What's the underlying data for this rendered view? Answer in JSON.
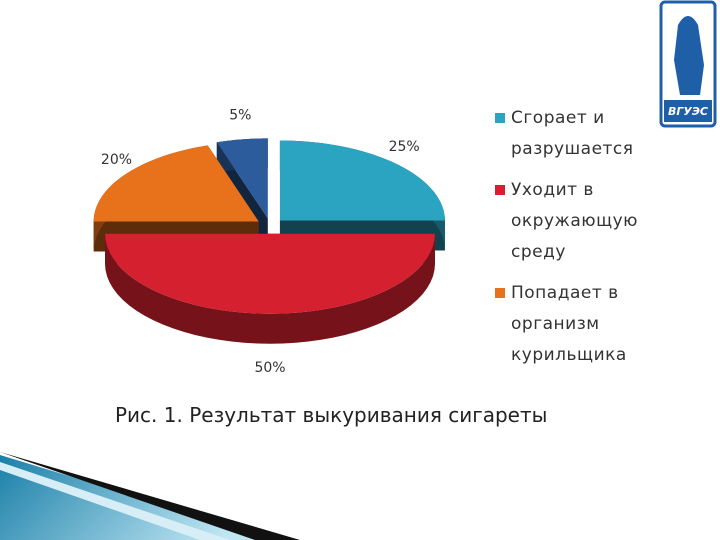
{
  "chart_data": {
    "type": "pie",
    "title": "Рис. 1. Результат выкуривания сигареты",
    "categories": [
      "Сгорает и разрушается",
      "Уходит в окружающую среду",
      "Попадает в организм курильщика",
      null
    ],
    "values": [
      25,
      50,
      20,
      5
    ],
    "value_labels": [
      "25%",
      "50%",
      "20%",
      "5%"
    ],
    "colors": [
      "#2ba4c2",
      "#d4202f",
      "#e8711b",
      "#2d5c9c"
    ],
    "legend": "right"
  },
  "logo_text": "ВГУЭС"
}
